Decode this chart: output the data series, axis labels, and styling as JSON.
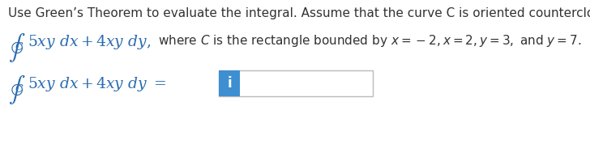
{
  "background_color": "#ffffff",
  "blue_color": "#2B6CB0",
  "dark_color": "#333333",
  "line1": "Use Green’s Theorem to evaluate the integral. Assume that the curve C is oriented counterclockwise.",
  "line1_fontsize": 11.0,
  "math_fontsize": 13.5,
  "text_fontsize": 11.0,
  "icon_color": "#3D8FD1",
  "icon_text": "i",
  "icon_text_color": "#ffffff"
}
